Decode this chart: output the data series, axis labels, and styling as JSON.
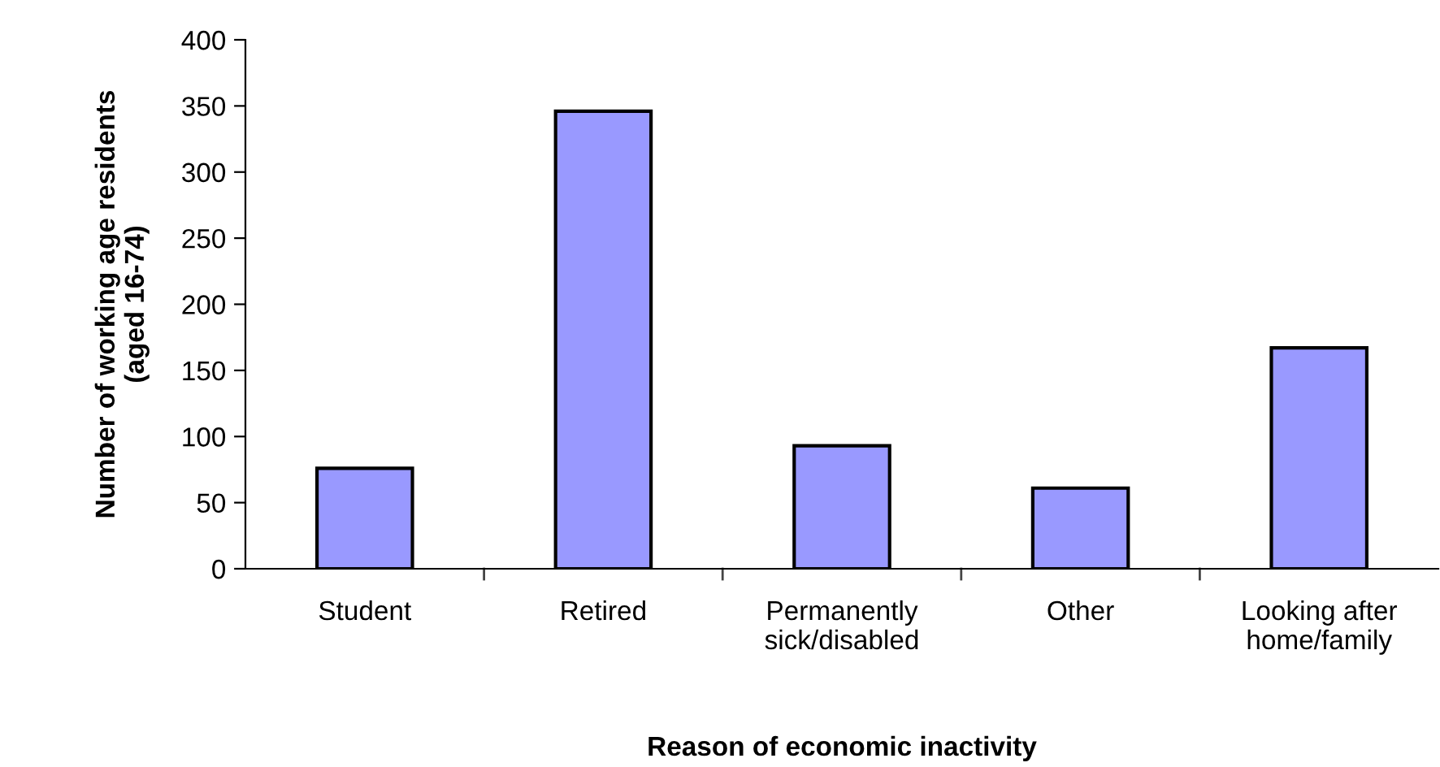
{
  "chart_data": {
    "type": "bar",
    "categories": [
      "Student",
      "Retired",
      "Permanently\nsick/disabled",
      "Other",
      "Looking after\nhome/family"
    ],
    "values": [
      76,
      346,
      93,
      61,
      167
    ],
    "color": "#9999ff",
    "ylim": [
      0,
      400
    ],
    "yticks": [
      0,
      50,
      100,
      150,
      200,
      250,
      300,
      350,
      400
    ],
    "xlabel": "Reason of economic inactivity",
    "ylabel": "Number of working age residents\n(aged 16-74)",
    "grid": false
  }
}
